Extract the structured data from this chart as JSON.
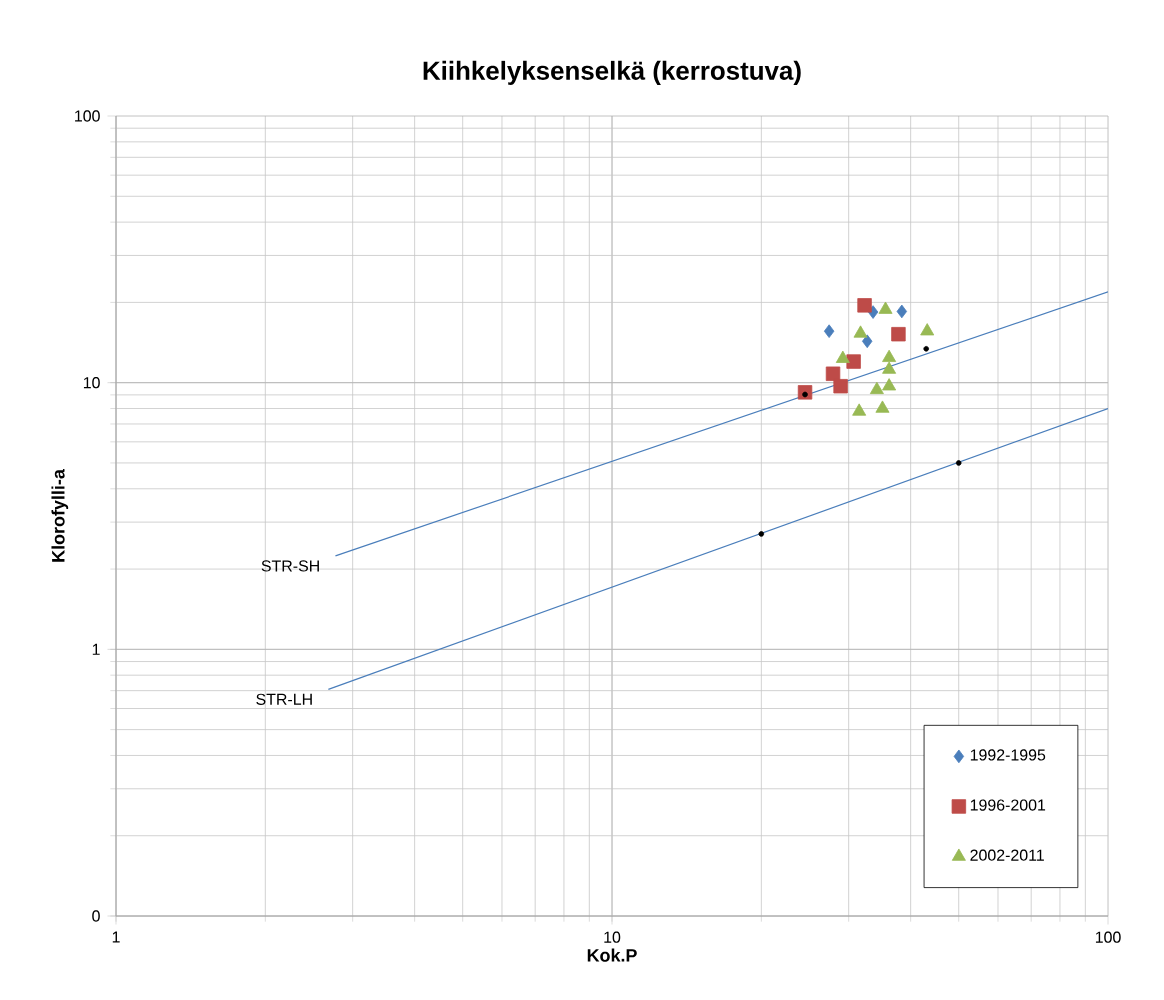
{
  "chart_data": {
    "type": "scatter",
    "title": "Kiihkelyksenselkä (kerrostuva)",
    "xlabel": "Kok.P",
    "ylabel": "Klorofylli-a",
    "log": "xy",
    "grid": true,
    "legend": "bottom right",
    "xlim": [
      1,
      100
    ],
    "xticks": [
      1,
      10,
      100
    ],
    "ylim": [
      0.1,
      100
    ],
    "yticks": [
      {
        "value": 0.1,
        "label": "0"
      },
      1,
      10,
      100
    ],
    "series": [
      {
        "name": "1992-1995",
        "marker": "diamond",
        "color": "#4a7ebb",
        "x": [
          27.4,
          33.6,
          38.4,
          32.7
        ],
        "values": [
          15.6,
          18.4,
          18.5,
          14.3
        ]
      },
      {
        "name": "1996-2001",
        "marker": "square",
        "color": "#be4b48",
        "x": [
          32.3,
          37.8,
          30.7,
          27.9,
          28.9,
          24.5
        ],
        "values": [
          19.5,
          15.2,
          12.0,
          10.8,
          9.7,
          9.2
        ]
      },
      {
        "name": "2002-2011",
        "marker": "triangle",
        "color": "#98b954",
        "x": [
          35.6,
          43.2,
          31.7,
          29.2,
          36.2,
          36.2,
          34.2,
          36.2,
          31.5,
          35.1
        ],
        "values": [
          18.8,
          15.6,
          15.3,
          12.3,
          12.4,
          11.2,
          9.4,
          9.7,
          7.8,
          8.0
        ]
      },
      {
        "name": "STR-SH",
        "type": "line",
        "color": "#4a7ebb",
        "x": [
          2.77,
          100
        ],
        "values": [
          2.24,
          21.9
        ]
      },
      {
        "name": "STR-LH",
        "type": "line",
        "color": "#4a7ebb",
        "x": [
          2.68,
          100
        ],
        "values": [
          0.708,
          8.0
        ]
      },
      {
        "marker": "circle",
        "color": "#000000",
        "x": [
          24.5,
          43.0
        ],
        "values": [
          9.03,
          13.4
        ]
      },
      {
        "marker": "circle",
        "color": "#000000",
        "x": [
          20,
          50
        ],
        "values": [
          2.71,
          5.0
        ]
      }
    ]
  }
}
